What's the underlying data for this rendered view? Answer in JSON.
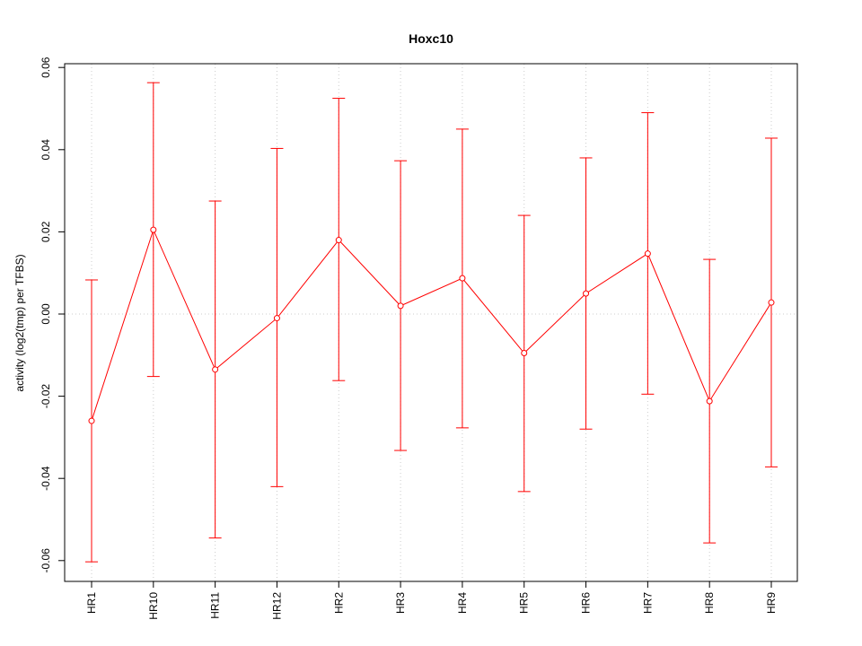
{
  "chart_data": {
    "type": "line",
    "title": "Hoxc10",
    "xlabel": "",
    "ylabel": "activity (log2(tmp) per TFBS)",
    "categories": [
      "HR1",
      "HR10",
      "HR11",
      "HR12",
      "HR2",
      "HR3",
      "HR4",
      "HR5",
      "HR6",
      "HR7",
      "HR8",
      "HR9"
    ],
    "series": [
      {
        "values": [
          -0.026,
          0.0205,
          -0.0135,
          -0.001,
          0.018,
          0.002,
          0.0087,
          -0.0095,
          0.005,
          0.0147,
          -0.0212,
          0.0028
        ],
        "upper": [
          0.0083,
          0.0563,
          0.0275,
          0.0403,
          0.0525,
          0.0373,
          0.045,
          0.024,
          0.038,
          0.049,
          0.0133,
          0.0428
        ],
        "lower": [
          -0.0603,
          -0.0152,
          -0.0545,
          -0.042,
          -0.0162,
          -0.0332,
          -0.0277,
          -0.0432,
          -0.028,
          -0.0195,
          -0.0557,
          -0.0372
        ]
      }
    ],
    "ylim": [
      -0.065,
      0.0605
    ],
    "yticks": [
      -0.06,
      -0.04,
      -0.02,
      0.0,
      0.02,
      0.04,
      0.06
    ],
    "ytick_labels": [
      "-0.06",
      "-0.04",
      "-0.02",
      "0.00",
      "0.02",
      "0.04",
      "0.06"
    ],
    "grid": true,
    "colors": {
      "series": "#ff0000",
      "grid": "#cccccc",
      "axis": "#000000"
    }
  }
}
